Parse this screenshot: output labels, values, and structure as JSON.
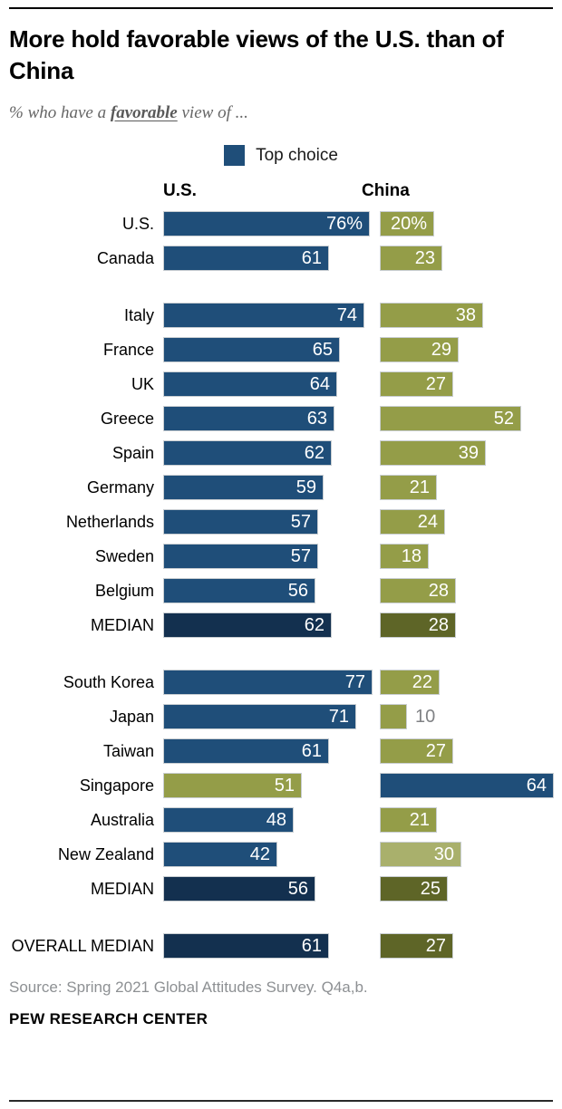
{
  "header": {
    "title": "More hold favorable views of the U.S. than of China",
    "subtitle_prefix": "% who have a ",
    "subtitle_emphasis": "favorable",
    "subtitle_suffix": " view of ..."
  },
  "legend": {
    "label": "Top choice",
    "swatch_color": "#1F4E79"
  },
  "footer": {
    "source": "Source: Spring 2021 Global Attitudes Survey. Q4a,b.",
    "brand": "PEW RESEARCH CENTER"
  },
  "chart_data": {
    "type": "bar",
    "orientation": "horizontal",
    "unit": "percent",
    "xlim": [
      0,
      80
    ],
    "columns": [
      "U.S.",
      "China"
    ],
    "palette": {
      "navy": "#1F4E79",
      "navy_dark": "#13304F",
      "olive": "#949D48",
      "olive_light": "#A9B06C",
      "olive_dark": "#5E6527",
      "outside_value_gray": "#808285"
    },
    "sections": [
      {
        "rows": [
          {
            "label": "U.S.",
            "us": 76,
            "us_display": "76%",
            "us_color": "navy",
            "china": 20,
            "china_display": "20%",
            "china_color": "olive"
          },
          {
            "label": "Canada",
            "us": 61,
            "us_display": "61",
            "us_color": "navy",
            "china": 23,
            "china_display": "23",
            "china_color": "olive"
          }
        ]
      },
      {
        "rows": [
          {
            "label": "Italy",
            "us": 74,
            "us_display": "74",
            "us_color": "navy",
            "china": 38,
            "china_display": "38",
            "china_color": "olive"
          },
          {
            "label": "France",
            "us": 65,
            "us_display": "65",
            "us_color": "navy",
            "china": 29,
            "china_display": "29",
            "china_color": "olive"
          },
          {
            "label": "UK",
            "us": 64,
            "us_display": "64",
            "us_color": "navy",
            "china": 27,
            "china_display": "27",
            "china_color": "olive"
          },
          {
            "label": "Greece",
            "us": 63,
            "us_display": "63",
            "us_color": "navy",
            "china": 52,
            "china_display": "52",
            "china_color": "olive"
          },
          {
            "label": "Spain",
            "us": 62,
            "us_display": "62",
            "us_color": "navy",
            "china": 39,
            "china_display": "39",
            "china_color": "olive"
          },
          {
            "label": "Germany",
            "us": 59,
            "us_display": "59",
            "us_color": "navy",
            "china": 21,
            "china_display": "21",
            "china_color": "olive"
          },
          {
            "label": "Netherlands",
            "us": 57,
            "us_display": "57",
            "us_color": "navy",
            "china": 24,
            "china_display": "24",
            "china_color": "olive"
          },
          {
            "label": "Sweden",
            "us": 57,
            "us_display": "57",
            "us_color": "navy",
            "china": 18,
            "china_display": "18",
            "china_color": "olive"
          },
          {
            "label": "Belgium",
            "us": 56,
            "us_display": "56",
            "us_color": "navy",
            "china": 28,
            "china_display": "28",
            "china_color": "olive"
          },
          {
            "label": "MEDIAN",
            "us": 62,
            "us_display": "62",
            "us_color": "navy_dark",
            "china": 28,
            "china_display": "28",
            "china_color": "olive_dark"
          }
        ]
      },
      {
        "rows": [
          {
            "label": "South Korea",
            "us": 77,
            "us_display": "77",
            "us_color": "navy",
            "china": 22,
            "china_display": "22",
            "china_color": "olive"
          },
          {
            "label": "Japan",
            "us": 71,
            "us_display": "71",
            "us_color": "navy",
            "china": 10,
            "china_display": "10",
            "china_color": "olive",
            "china_value_outside": true
          },
          {
            "label": "Taiwan",
            "us": 61,
            "us_display": "61",
            "us_color": "navy",
            "china": 27,
            "china_display": "27",
            "china_color": "olive"
          },
          {
            "label": "Singapore",
            "us": 51,
            "us_display": "51",
            "us_color": "olive",
            "china": 64,
            "china_display": "64",
            "china_color": "navy"
          },
          {
            "label": "Australia",
            "us": 48,
            "us_display": "48",
            "us_color": "navy",
            "china": 21,
            "china_display": "21",
            "china_color": "olive"
          },
          {
            "label": "New Zealand",
            "us": 42,
            "us_display": "42",
            "us_color": "navy",
            "china": 30,
            "china_display": "30",
            "china_color": "olive_light"
          },
          {
            "label": "MEDIAN",
            "us": 56,
            "us_display": "56",
            "us_color": "navy_dark",
            "china": 25,
            "china_display": "25",
            "china_color": "olive_dark"
          }
        ]
      },
      {
        "rows": [
          {
            "label": "OVERALL MEDIAN",
            "us": 61,
            "us_display": "61",
            "us_color": "navy_dark",
            "china": 27,
            "china_display": "27",
            "china_color": "olive_dark"
          }
        ]
      }
    ]
  }
}
